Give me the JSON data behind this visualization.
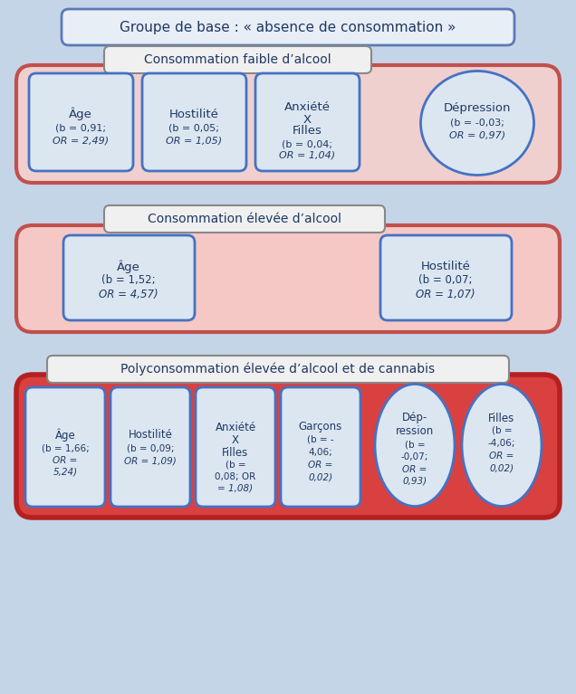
{
  "title": "Groupe de base : « absence de consommation »",
  "section1_label": "Consommation faible d’alcool",
  "section2_label": "Consommation élevée d’alcool",
  "section3_label": "Polyconsommation élevée d’alcool et de cannabis",
  "bg_color": "#c5d5e8",
  "title_box_fill": "#e8eef5",
  "title_box_edge": "#5a7ab5",
  "sec1_fill": "#f0d0ce",
  "sec1_edge": "#c0504d",
  "sec2_fill": "#f5c8c5",
  "sec2_edge": "#c0504d",
  "sec3_fill": "#d94040",
  "sec3_edge": "#b52020",
  "inner_fill": "#dce6f1",
  "inner_edge": "#4472c4",
  "label_fill": "#f0f0f0",
  "label_edge": "#888888",
  "text_color": "#1f3864",
  "italic_color": "#1f3864"
}
